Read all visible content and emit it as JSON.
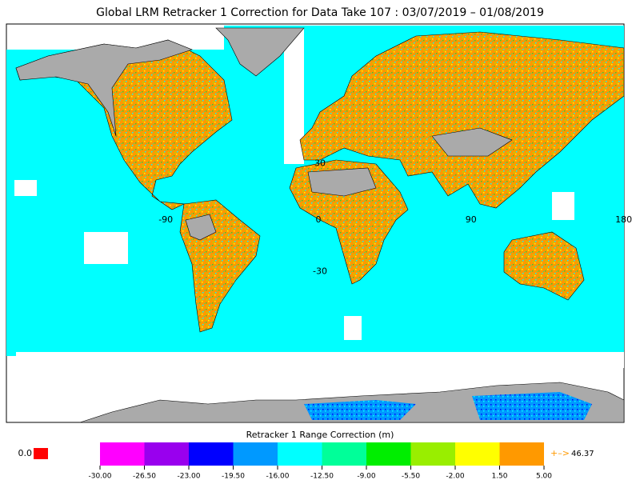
{
  "title": "Global LRM Retracker 1 Correction for Data Take 107 : 03/07/2019 – 01/08/2019",
  "map": {
    "lon_ticks": [
      -90,
      0,
      90,
      180
    ],
    "lat_ticks": [
      30,
      -30
    ]
  },
  "colorbar": {
    "title": "Retracker 1 Range Correction (m)",
    "colors": [
      "#ff00ff",
      "#9900ee",
      "#0000ff",
      "#0099ff",
      "#00ffff",
      "#00ff99",
      "#00ee00",
      "#99ee00",
      "#ffff00",
      "#ff9900"
    ],
    "ticks": [
      {
        "value": -30,
        "label": "-30.00"
      },
      {
        "value": -26.5,
        "label": "-26.50"
      },
      {
        "value": -23,
        "label": "-23.00"
      },
      {
        "value": -19.5,
        "label": "-19.50"
      },
      {
        "value": -16,
        "label": "-16.00"
      },
      {
        "value": -12.5,
        "label": "-12.50"
      },
      {
        "value": -9,
        "label": "-9.00"
      },
      {
        "value": -5.5,
        "label": "-5.50"
      },
      {
        "value": -2,
        "label": "-2.00"
      },
      {
        "value": 1.5,
        "label": "1.50"
      },
      {
        "value": 5,
        "label": "5.00"
      }
    ]
  },
  "missing": {
    "label": "0.0",
    "color": "#ff0000"
  },
  "overflow": {
    "arrow": "+–>",
    "value": 46.37
  }
}
